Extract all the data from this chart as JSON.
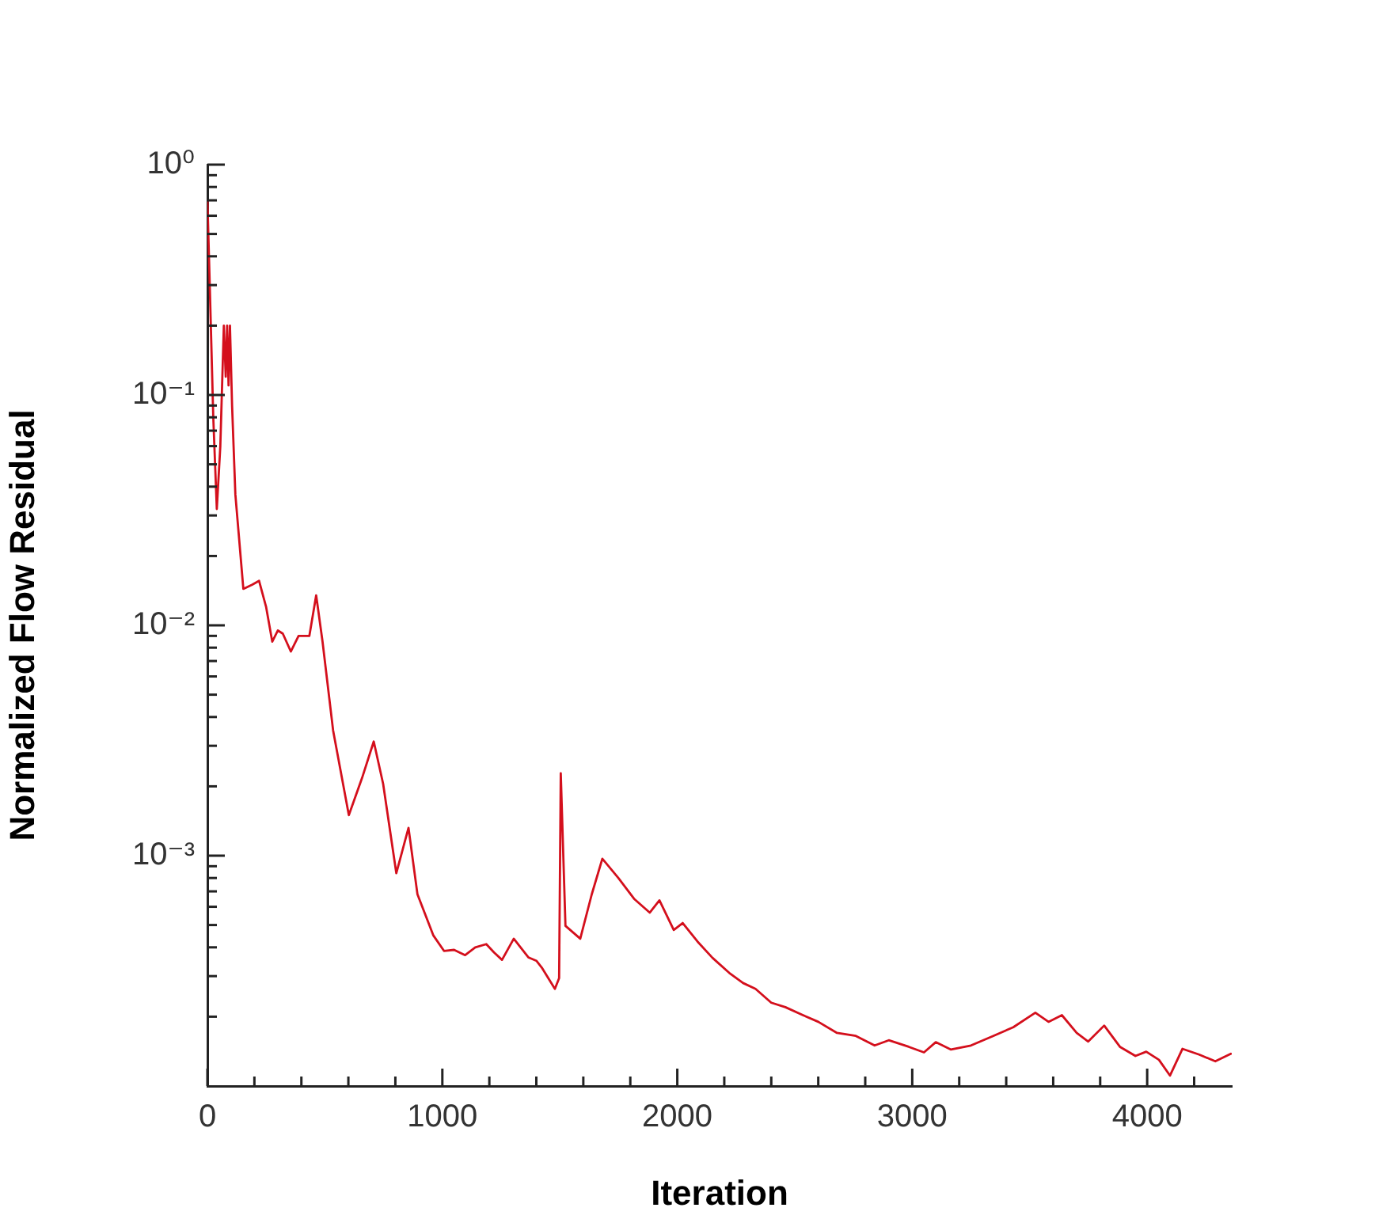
{
  "chart_data": {
    "type": "line",
    "xlabel": "Iteration",
    "ylabel": "Normalized Flow Residual",
    "log": "y",
    "grid": false,
    "legend": false,
    "marker": "none",
    "line_style": "solid",
    "xlim": [
      0,
      4360
    ],
    "xticks": [
      0,
      {
        "value": 200,
        "label": null
      },
      {
        "value": 400,
        "label": null
      },
      {
        "value": 600,
        "label": null
      },
      {
        "value": 800,
        "label": null
      },
      1000,
      {
        "value": 1200,
        "label": null
      },
      {
        "value": 1400,
        "label": null
      },
      {
        "value": 1600,
        "label": null
      },
      {
        "value": 1800,
        "label": null
      },
      2000,
      {
        "value": 2200,
        "label": null
      },
      {
        "value": 2400,
        "label": null
      },
      {
        "value": 2600,
        "label": null
      },
      {
        "value": 2800,
        "label": null
      },
      3000,
      {
        "value": 3200,
        "label": null
      },
      {
        "value": 3400,
        "label": null
      },
      {
        "value": 3600,
        "label": null
      },
      {
        "value": 3800,
        "label": null
      },
      4000,
      {
        "value": 4200,
        "label": null
      }
    ],
    "ylim": [
      0.0001,
      1
    ],
    "yticks": [
      {
        "value": 0.0002,
        "label": null
      },
      {
        "value": 0.0003,
        "label": null
      },
      {
        "value": 0.0004,
        "label": null
      },
      {
        "value": 0.0005,
        "label": null
      },
      {
        "value": 0.0006,
        "label": null
      },
      {
        "value": 0.0007,
        "label": null
      },
      {
        "value": 0.0008,
        "label": null
      },
      {
        "value": 0.0009,
        "label": null
      },
      {
        "value": 0.001,
        "label": "10⁻³"
      },
      {
        "value": 0.002,
        "label": null
      },
      {
        "value": 0.003,
        "label": null
      },
      {
        "value": 0.004,
        "label": null
      },
      {
        "value": 0.005,
        "label": null
      },
      {
        "value": 0.006,
        "label": null
      },
      {
        "value": 0.007,
        "label": null
      },
      {
        "value": 0.008,
        "label": null
      },
      {
        "value": 0.009,
        "label": null
      },
      {
        "value": 0.01,
        "label": "10⁻²"
      },
      {
        "value": 0.02,
        "label": null
      },
      {
        "value": 0.03,
        "label": null
      },
      {
        "value": 0.04,
        "label": null
      },
      {
        "value": 0.05,
        "label": null
      },
      {
        "value": 0.06,
        "label": null
      },
      {
        "value": 0.07,
        "label": null
      },
      {
        "value": 0.08,
        "label": null
      },
      {
        "value": 0.09,
        "label": null
      },
      {
        "value": 0.1,
        "label": "10⁻¹"
      },
      {
        "value": 0.2,
        "label": null
      },
      {
        "value": 0.3,
        "label": null
      },
      {
        "value": 0.4,
        "label": null
      },
      {
        "value": 0.5,
        "label": null
      },
      {
        "value": 0.6,
        "label": null
      },
      {
        "value": 0.7,
        "label": null
      },
      {
        "value": 0.8,
        "label": null
      },
      {
        "value": 0.9,
        "label": null
      },
      {
        "value": 1,
        "label": "10⁰"
      }
    ],
    "x": [
      0,
      10,
      25,
      40,
      55,
      70,
      78,
      84,
      90,
      96,
      105,
      119,
      153,
      190,
      220,
      250,
      276,
      300,
      321,
      355,
      388,
      434,
      463,
      490,
      535,
      602,
      658,
      708,
      748,
      804,
      856,
      894,
      962,
      1007,
      1050,
      1097,
      1140,
      1187,
      1220,
      1254,
      1304,
      1366,
      1400,
      1423,
      1479,
      1497,
      1504,
      1524,
      1587,
      1636,
      1681,
      1749,
      1816,
      1883,
      1924,
      1985,
      2023,
      2086,
      2150,
      2221,
      2280,
      2333,
      2400,
      2460,
      2535,
      2600,
      2680,
      2760,
      2840,
      2900,
      2985,
      3050,
      3100,
      3165,
      3250,
      3345,
      3430,
      3524,
      3580,
      3637,
      3700,
      3749,
      3817,
      3884,
      3950,
      3996,
      4050,
      4097,
      4150,
      4221,
      4290,
      4356
    ],
    "series": [
      {
        "color": "#d40f1c",
        "values": [
          0.7,
          0.3,
          0.08,
          0.032,
          0.06,
          0.2,
          0.12,
          0.2,
          0.11,
          0.2,
          0.09,
          0.037,
          0.0144,
          0.015,
          0.0156,
          0.012,
          0.0085,
          0.0095,
          0.0092,
          0.0077,
          0.009,
          0.009,
          0.0135,
          0.0085,
          0.0035,
          0.0015,
          0.00217,
          0.00313,
          0.00205,
          0.00084,
          0.00132,
          0.00068,
          0.00045,
          0.000386,
          0.00039,
          0.00037,
          0.0004,
          0.000413,
          0.00038,
          0.000353,
          0.000436,
          0.000362,
          0.00035,
          0.000327,
          0.000264,
          0.000294,
          0.00228,
          0.000496,
          0.000436,
          0.00068,
          0.00097,
          0.0008,
          0.00065,
          0.000566,
          0.00064,
          0.000476,
          0.00051,
          0.000424,
          0.00036,
          0.00031,
          0.00028,
          0.000264,
          0.00023,
          0.00022,
          0.000203,
          0.00019,
          0.00017,
          0.000165,
          0.00015,
          0.000158,
          0.000148,
          0.00014,
          0.000155,
          0.000144,
          0.00015,
          0.000165,
          0.00018,
          0.000208,
          0.00019,
          0.000203,
          0.00017,
          0.000156,
          0.000183,
          0.000148,
          0.000135,
          0.000141,
          0.00013,
          0.000111,
          0.000145,
          0.000137,
          0.000128,
          0.000138
        ]
      }
    ]
  }
}
